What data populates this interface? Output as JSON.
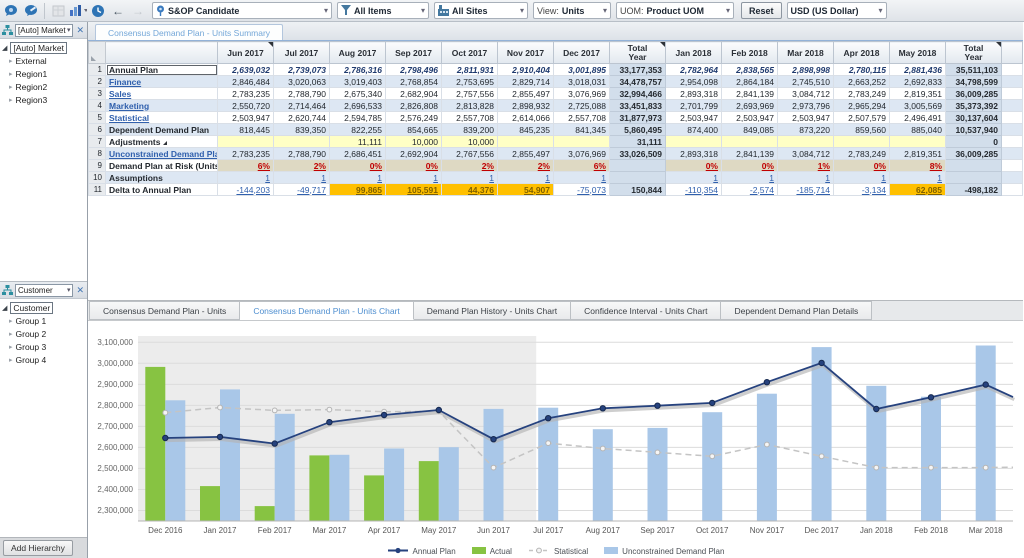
{
  "toolbar": {
    "scenario": "S&OP Candidate",
    "items_filter": "All Items",
    "sites_filter": "All Sites",
    "view_label": "View:",
    "view_value": "Units",
    "uom_label": "UOM:",
    "uom_value": "Product UOM",
    "reset_label": "Reset",
    "currency": "USD (US Dollar)"
  },
  "sidebar": {
    "panel1": {
      "selector": "[Auto] Market",
      "root": "[Auto] Market",
      "children": [
        "External",
        "Region1",
        "Region2",
        "Region3"
      ]
    },
    "panel2": {
      "selector": "Customer",
      "root": "Customer",
      "children": [
        "Group 1",
        "Group 2",
        "Group 3",
        "Group 4"
      ]
    },
    "add_hierarchy_label": "Add Hierarchy"
  },
  "worksheet_tab": "Consensus Demand Plan - Units Summary",
  "table": {
    "columns": [
      "Jun 2017",
      "Jul 2017",
      "Aug 2017",
      "Sep 2017",
      "Oct 2017",
      "Nov 2017",
      "Dec 2017",
      "Total Year",
      "Jan 2018",
      "Feb 2018",
      "Mar 2018",
      "Apr 2018",
      "May 2018",
      "Total Year"
    ],
    "total_column_indexes": [
      7,
      13
    ],
    "marker_column_indexes": [
      0,
      7,
      13
    ],
    "rows": [
      {
        "label": "Annual Plan",
        "kind": "annual",
        "cells": [
          "2,639,032",
          "2,739,073",
          "2,786,316",
          "2,798,496",
          "2,811,931",
          "2,910,404",
          "3,001,895",
          "33,177,353",
          "2,782,964",
          "2,838,565",
          "2,898,998",
          "2,780,115",
          "2,881,436",
          "35,511,103"
        ]
      },
      {
        "label": "Finance",
        "kind": "link",
        "cells": [
          "2,846,484",
          "3,020,063",
          "3,019,403",
          "2,768,854",
          "2,753,695",
          "2,829,714",
          "3,018,031",
          "34,478,757",
          "2,954,098",
          "2,864,184",
          "2,745,510",
          "2,663,252",
          "2,692,833",
          "34,798,599"
        ]
      },
      {
        "label": "Sales",
        "kind": "link",
        "cells": [
          "2,783,235",
          "2,788,790",
          "2,675,340",
          "2,682,904",
          "2,757,556",
          "2,855,497",
          "3,076,969",
          "32,994,466",
          "2,893,318",
          "2,841,139",
          "3,084,712",
          "2,783,249",
          "2,819,351",
          "36,009,285"
        ]
      },
      {
        "label": "Marketing",
        "kind": "link",
        "cells": [
          "2,550,720",
          "2,714,464",
          "2,696,533",
          "2,826,808",
          "2,813,828",
          "2,898,932",
          "2,725,088",
          "33,451,833",
          "2,701,799",
          "2,693,969",
          "2,973,796",
          "2,965,294",
          "3,005,569",
          "35,373,392"
        ]
      },
      {
        "label": "Statistical",
        "kind": "link",
        "cells": [
          "2,503,947",
          "2,620,744",
          "2,594,785",
          "2,576,249",
          "2,557,708",
          "2,614,066",
          "2,557,708",
          "31,877,973",
          "2,503,947",
          "2,503,947",
          "2,503,947",
          "2,507,579",
          "2,496,491",
          "30,137,604"
        ]
      },
      {
        "label": "Dependent Demand Plan",
        "kind": "bold",
        "cells": [
          "818,445",
          "839,350",
          "822,255",
          "854,665",
          "839,200",
          "845,235",
          "841,345",
          "5,860,495",
          "874,400",
          "849,085",
          "873,220",
          "859,560",
          "885,040",
          "10,537,940"
        ]
      },
      {
        "label": "Adjustments",
        "kind": "adjustments",
        "cells": [
          "",
          "",
          "11,111",
          "10,000",
          "10,000",
          "",
          "",
          "31,111",
          "",
          "",
          "",
          "",
          "",
          "0"
        ]
      },
      {
        "label": "Unconstrained Demand Plan",
        "kind": "link",
        "cells": [
          "2,783,235",
          "2,788,790",
          "2,686,451",
          "2,692,904",
          "2,767,556",
          "2,855,497",
          "3,076,969",
          "33,026,509",
          "2,893,318",
          "2,841,139",
          "3,084,712",
          "2,783,249",
          "2,819,351",
          "36,009,285"
        ]
      },
      {
        "label": "Demand Plan at Risk (Units)",
        "kind": "risk",
        "cells": [
          "6%",
          "2%",
          "0%",
          "0%",
          "2%",
          "2%",
          "6%",
          "",
          "0%",
          "0%",
          "1%",
          "0%",
          "8%",
          ""
        ]
      },
      {
        "label": "Assumptions",
        "kind": "assumptions",
        "cells": [
          "1",
          "1",
          "1",
          "1",
          "1",
          "1",
          "1",
          "",
          "1",
          "1",
          "1",
          "1",
          "1",
          ""
        ]
      },
      {
        "label": "Delta to Annual Plan",
        "kind": "delta",
        "cells": [
          "-144,203",
          "-49,717",
          "99,865",
          "105,591",
          "44,376",
          "54,907",
          "-75,073",
          "150,844",
          "-110,354",
          "-2,574",
          "-185,714",
          "-3,134",
          "62,085",
          "-498,182"
        ]
      }
    ]
  },
  "chart_tabs": [
    "Consensus Demand Plan - Units",
    "Consensus Demand Plan - Units Chart",
    "Demand Plan History - Units Chart",
    "Confidence Interval - Units Chart",
    "Dependent Demand Plan Details"
  ],
  "active_chart_tab_index": 1,
  "chart_data": {
    "type": "combo",
    "categories": [
      "Dec 2016",
      "Jan 2017",
      "Feb 2017",
      "Mar 2017",
      "Apr 2017",
      "May 2017",
      "Jun 2017",
      "Jul 2017",
      "Aug 2017",
      "Sep 2017",
      "Oct 2017",
      "Nov 2017",
      "Dec 2017",
      "Jan 2018",
      "Feb 2018",
      "Mar 2018"
    ],
    "series": [
      {
        "name": "Annual Plan",
        "type": "line",
        "color": "#26427e",
        "values": [
          2645000,
          2650000,
          2618000,
          2720000,
          2754000,
          2778000,
          2639032,
          2739073,
          2786316,
          2798496,
          2811931,
          2910404,
          3001895,
          2782964,
          2838565,
          2898998
        ],
        "next_value": 2780115
      },
      {
        "name": "Actual",
        "type": "bar",
        "color": "#87c342",
        "values": [
          2983000,
          2416000,
          2321000,
          2562000,
          2467000,
          2535000,
          null,
          null,
          null,
          null,
          null,
          null,
          null,
          null,
          null,
          null
        ]
      },
      {
        "name": "Statistical",
        "type": "line",
        "dashed": true,
        "color": "#c4c4c4",
        "values": [
          2765000,
          2790000,
          2776000,
          2780000,
          2770000,
          2772000,
          2503947,
          2620744,
          2594785,
          2576249,
          2557708,
          2614066,
          2557708,
          2503947,
          2503947,
          2503947
        ],
        "next_value": 2507579
      },
      {
        "name": "Unconstrained Demand Plan",
        "type": "bar",
        "color": "#a9c7e8",
        "values": [
          2824000,
          2876000,
          2760000,
          2565000,
          2595000,
          2601000,
          2783235,
          2788790,
          2686451,
          2692904,
          2767556,
          2855497,
          3076969,
          2893318,
          2841139,
          3084712
        ]
      }
    ],
    "ylim": [
      2250000,
      3130000
    ],
    "yticks": [
      2300000,
      2400000,
      2500000,
      2600000,
      2700000,
      2800000,
      2900000,
      3000000,
      3100000
    ],
    "history_slots": 7,
    "grid": true,
    "legend_position": "bottom"
  }
}
